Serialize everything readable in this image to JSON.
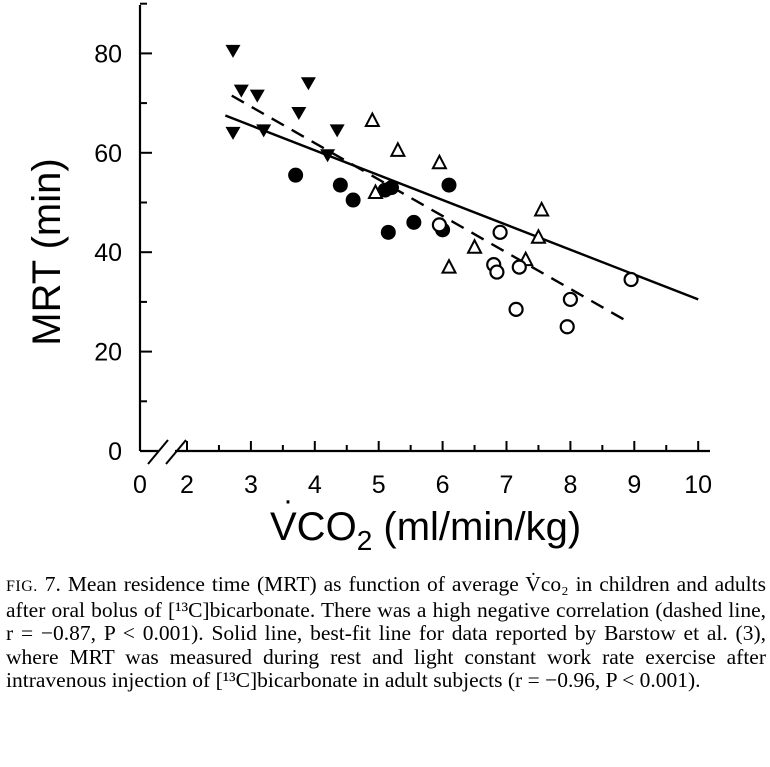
{
  "chart_data": {
    "type": "scatter",
    "xlabel": "V̇CO₂ (ml/min/kg)",
    "xlabel_main": "VCO",
    "xlabel_sub": "2",
    "xlabel_rest": " (ml/min/kg)",
    "ylabel": "MRT (min)",
    "xlim": [
      2,
      10
    ],
    "ylim": [
      0,
      90
    ],
    "x_axis_break": "0 // 2",
    "x_ticks": [
      "0",
      "2",
      "3",
      "4",
      "5",
      "6",
      "7",
      "8",
      "9",
      "10"
    ],
    "y_ticks": [
      "0",
      "20",
      "40",
      "60",
      "80"
    ],
    "grid": false,
    "series": [
      {
        "marker": "filled-triangle-down",
        "points": [
          {
            "x": 2.72,
            "y": 80.5
          },
          {
            "x": 2.85,
            "y": 72.5
          },
          {
            "x": 3.1,
            "y": 71.5
          },
          {
            "x": 3.9,
            "y": 74.0
          },
          {
            "x": 3.75,
            "y": 68.0
          },
          {
            "x": 2.72,
            "y": 64.0
          },
          {
            "x": 3.2,
            "y": 64.5
          },
          {
            "x": 4.35,
            "y": 64.5
          },
          {
            "x": 4.2,
            "y": 59.5
          }
        ]
      },
      {
        "marker": "filled-circle",
        "points": [
          {
            "x": 3.7,
            "y": 55.5
          },
          {
            "x": 4.4,
            "y": 53.5
          },
          {
            "x": 4.6,
            "y": 50.5
          },
          {
            "x": 5.1,
            "y": 52.5
          },
          {
            "x": 5.2,
            "y": 53.0
          },
          {
            "x": 6.1,
            "y": 53.5
          },
          {
            "x": 5.15,
            "y": 44.0
          },
          {
            "x": 5.55,
            "y": 46.0
          },
          {
            "x": 6.0,
            "y": 44.5
          }
        ]
      },
      {
        "marker": "open-triangle-up",
        "points": [
          {
            "x": 4.9,
            "y": 66.5
          },
          {
            "x": 5.3,
            "y": 60.5
          },
          {
            "x": 5.95,
            "y": 58.0
          },
          {
            "x": 4.95,
            "y": 52.0
          },
          {
            "x": 6.5,
            "y": 41.0
          },
          {
            "x": 6.1,
            "y": 37.0
          },
          {
            "x": 7.55,
            "y": 48.5
          },
          {
            "x": 7.5,
            "y": 43.0
          },
          {
            "x": 7.3,
            "y": 38.5
          }
        ]
      },
      {
        "marker": "open-circle",
        "points": [
          {
            "x": 5.95,
            "y": 45.5
          },
          {
            "x": 6.9,
            "y": 44.0
          },
          {
            "x": 6.8,
            "y": 37.5
          },
          {
            "x": 6.85,
            "y": 36.0
          },
          {
            "x": 7.2,
            "y": 37.0
          },
          {
            "x": 7.15,
            "y": 28.5
          },
          {
            "x": 8.0,
            "y": 30.5
          },
          {
            "x": 7.95,
            "y": 25.0
          },
          {
            "x": 8.95,
            "y": 34.5
          }
        ]
      }
    ],
    "lines": [
      {
        "style": "dashed",
        "from": {
          "x": 2.7,
          "y": 71.5
        },
        "to": {
          "x": 8.9,
          "y": 26.0
        }
      },
      {
        "style": "solid",
        "from": {
          "x": 2.6,
          "y": 67.5
        },
        "to": {
          "x": 10.0,
          "y": 30.5
        }
      }
    ]
  },
  "caption": {
    "fig_label": "FIG.",
    "text": "7. Mean residence time (MRT) as function of average V̇co₂ in children and adults after oral bolus of [¹³C]bicarbonate. There was a high negative correlation (dashed line, r = −0.87, P < 0.001). Solid line, best-fit line for data reported by Barstow et al. (3), where MRT was measured during rest and light constant work rate exercise after intravenous injection of [¹³C]bicarbonate in adult subjects (r = −0.96, P < 0.001)."
  }
}
